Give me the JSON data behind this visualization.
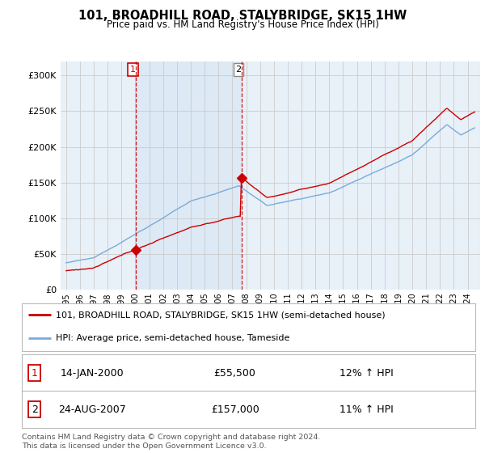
{
  "title": "101, BROADHILL ROAD, STALYBRIDGE, SK15 1HW",
  "subtitle": "Price paid vs. HM Land Registry's House Price Index (HPI)",
  "hpi_label": "HPI: Average price, semi-detached house, Tameside",
  "property_label": "101, BROADHILL ROAD, STALYBRIDGE, SK15 1HW (semi-detached house)",
  "sale1_date": "14-JAN-2000",
  "sale1_price": 55500,
  "sale1_hpi_text": "12% ↑ HPI",
  "sale2_date": "24-AUG-2007",
  "sale2_price": 157000,
  "sale2_hpi_text": "11% ↑ HPI",
  "sale1_x": 2000.04,
  "sale2_x": 2007.65,
  "hpi_color": "#7aabdb",
  "property_color": "#cc0000",
  "vline_color": "#cc0000",
  "shade_color": "#dde9f5",
  "grid_color": "#cccccc",
  "background_color": "#ffffff",
  "plot_bg_color": "#e8f0f8",
  "footer": "Contains HM Land Registry data © Crown copyright and database right 2024.\nThis data is licensed under the Open Government Licence v3.0.",
  "ylim": [
    0,
    320000
  ],
  "xlim_start": 1994.6,
  "xlim_end": 2024.9,
  "yticks": [
    0,
    50000,
    100000,
    150000,
    200000,
    250000,
    300000
  ]
}
